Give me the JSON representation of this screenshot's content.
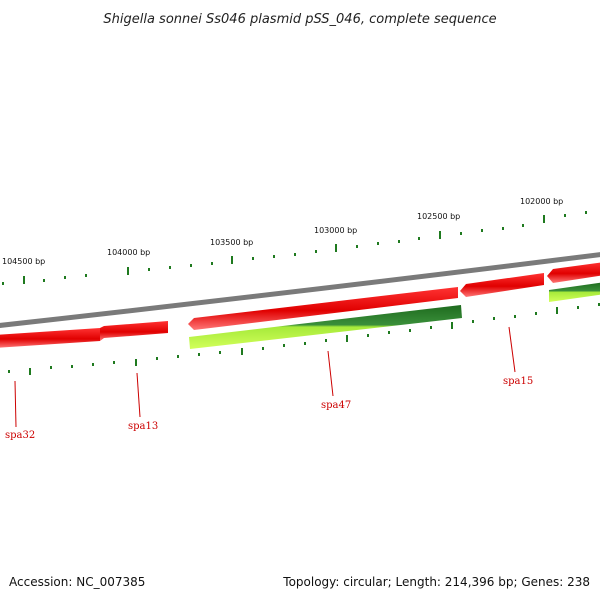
{
  "title": "Shigella sonnei Ss046 plasmid pSS_046, complete sequence",
  "accession_text": "Accession: NC_007385",
  "summary_text": "Topology: circular; Length: 214,396 bp; Genes: 238",
  "ruler": {
    "labels": [
      "104500 bp",
      "104000 bp",
      "103500 bp",
      "103000 bp",
      "102500 bp",
      "102000 bp"
    ]
  },
  "genes": [
    {
      "label": "spa32"
    },
    {
      "label": "spa13"
    },
    {
      "label": "spa47"
    },
    {
      "label": "spa15"
    }
  ],
  "colors": {
    "backbone": "#7a7a7a",
    "cds_forward": "#e00000",
    "cds_light": "#ff6666",
    "feature_dark": "#2a7a2a",
    "feature_light": "#aaee33",
    "tick": "#1f7a1f",
    "gene_label": "#cc0000"
  }
}
